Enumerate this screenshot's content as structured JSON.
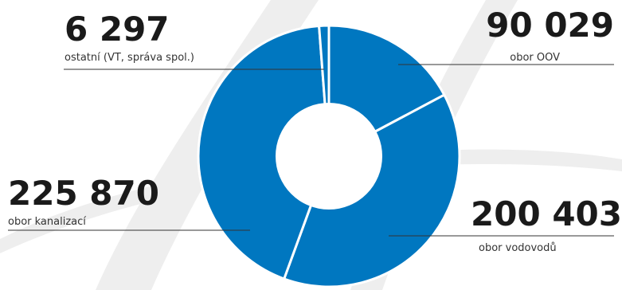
{
  "chart_data": {
    "type": "pie",
    "donut": true,
    "slices": [
      {
        "value": 90029,
        "display_value": "90 029",
        "label": "obor OOV",
        "color": "#0077c0"
      },
      {
        "value": 200403,
        "display_value": "200 403",
        "label": "obor vodovodů",
        "color": "#0077c0"
      },
      {
        "value": 225870,
        "display_value": "225 870",
        "label": "obor kanalizací",
        "color": "#0077c0"
      },
      {
        "value": 6297,
        "display_value": "6 297",
        "label": "ostatní (VT, správa spol.)",
        "color": "#0077c0"
      }
    ],
    "legend": "none"
  }
}
